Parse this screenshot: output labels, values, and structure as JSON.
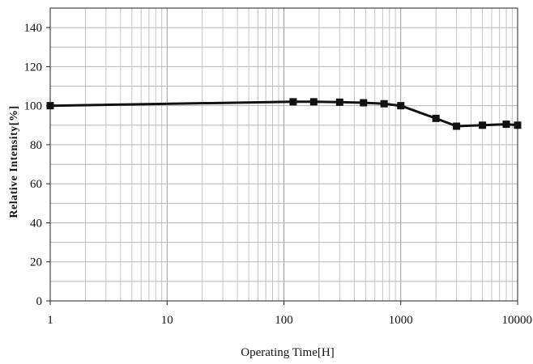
{
  "chart_data": {
    "type": "line",
    "title": "",
    "xlabel": "Operating Time[H]",
    "ylabel": "Relative Intensity[%]",
    "x_scale": "log",
    "xlim": [
      1,
      10000
    ],
    "ylim": [
      0,
      150
    ],
    "x_ticks": [
      1,
      10,
      100,
      1000,
      10000
    ],
    "x_tick_labels": [
      "1",
      "10",
      "100",
      "1000",
      "10000"
    ],
    "y_ticks": [
      0,
      20,
      40,
      60,
      80,
      100,
      120,
      140
    ],
    "y_tick_labels": [
      "0",
      "20",
      "40",
      "60",
      "80",
      "100",
      "120",
      "140"
    ],
    "y_minor_step": 10,
    "grid": true,
    "series": [
      {
        "marker": "square",
        "color": "#111111",
        "x": [
          1,
          120,
          180,
          300,
          480,
          720,
          1000,
          2000,
          3000,
          5000,
          8000,
          10000
        ],
        "y": [
          100,
          102,
          102,
          101.8,
          101.5,
          101,
          100,
          93.5,
          89.5,
          90,
          90.5,
          90
        ]
      }
    ]
  }
}
